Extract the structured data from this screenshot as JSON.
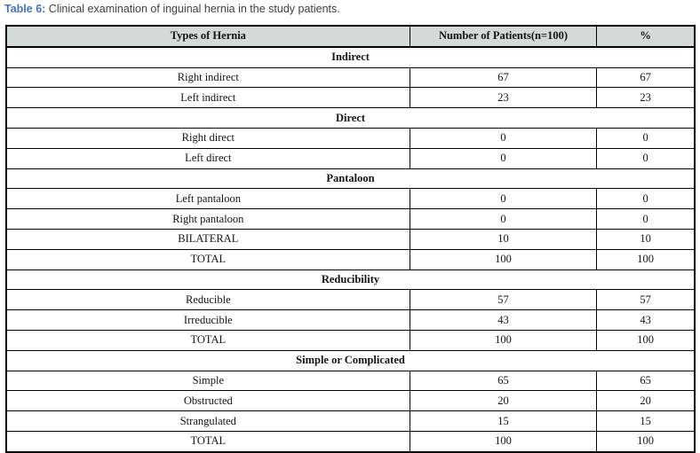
{
  "title": {
    "label": "Table 6:",
    "text": " Clinical examination of inguinal hernia in the study patients."
  },
  "table": {
    "columns": [
      "Types of Hernia",
      "Number of Patients(n=100)",
      "%"
    ],
    "sections": [
      {
        "header": "Indirect",
        "rows": [
          [
            "Right indirect",
            "67",
            "67"
          ],
          [
            "Left indirect",
            "23",
            "23"
          ]
        ]
      },
      {
        "header": "Direct",
        "rows": [
          [
            "Right direct",
            "0",
            "0"
          ],
          [
            "Left direct",
            "0",
            "0"
          ]
        ]
      },
      {
        "header": "Pantaloon",
        "rows": [
          [
            "Left pantaloon",
            "0",
            "0"
          ],
          [
            "Right pantaloon",
            "0",
            "0"
          ],
          [
            "BILATERAL",
            "10",
            "10"
          ],
          [
            "TOTAL",
            "100",
            "100"
          ]
        ]
      },
      {
        "header": "Reducibility",
        "rows": [
          [
            "Reducible",
            "57",
            "57"
          ],
          [
            "Irreducible",
            "43",
            "43"
          ],
          [
            "TOTAL",
            "100",
            "100"
          ]
        ]
      },
      {
        "header": "Simple or Complicated",
        "rows": [
          [
            "Simple",
            "65",
            "65"
          ],
          [
            "Obstructed",
            "20",
            "20"
          ],
          [
            "Strangulated",
            "15",
            "15"
          ],
          [
            "TOTAL",
            "100",
            "100"
          ]
        ]
      }
    ]
  },
  "colors": {
    "caption_accent": "#4472c4",
    "caption_text": "#3f3f3f",
    "header_background": "#d5d9d7",
    "border": "#000000"
  },
  "chart_data": {
    "type": "table",
    "title": "Table 6: Clinical examination of inguinal hernia in the study patients.",
    "columns": [
      "Types of Hernia",
      "Number of Patients(n=100)",
      "%"
    ],
    "groups": [
      {
        "name": "Indirect",
        "categories": [
          "Right indirect",
          "Left indirect"
        ],
        "patients": [
          67,
          23
        ],
        "percent": [
          67,
          23
        ]
      },
      {
        "name": "Direct",
        "categories": [
          "Right direct",
          "Left direct"
        ],
        "patients": [
          0,
          0
        ],
        "percent": [
          0,
          0
        ]
      },
      {
        "name": "Pantaloon",
        "categories": [
          "Left pantaloon",
          "Right pantaloon",
          "BILATERAL",
          "TOTAL"
        ],
        "patients": [
          0,
          0,
          10,
          100
        ],
        "percent": [
          0,
          0,
          10,
          100
        ]
      },
      {
        "name": "Reducibility",
        "categories": [
          "Reducible",
          "Irreducible",
          "TOTAL"
        ],
        "patients": [
          57,
          43,
          100
        ],
        "percent": [
          57,
          43,
          100
        ]
      },
      {
        "name": "Simple or Complicated",
        "categories": [
          "Simple",
          "Obstructed",
          "Strangulated",
          "TOTAL"
        ],
        "patients": [
          65,
          20,
          15,
          100
        ],
        "percent": [
          65,
          20,
          15,
          100
        ]
      }
    ]
  }
}
